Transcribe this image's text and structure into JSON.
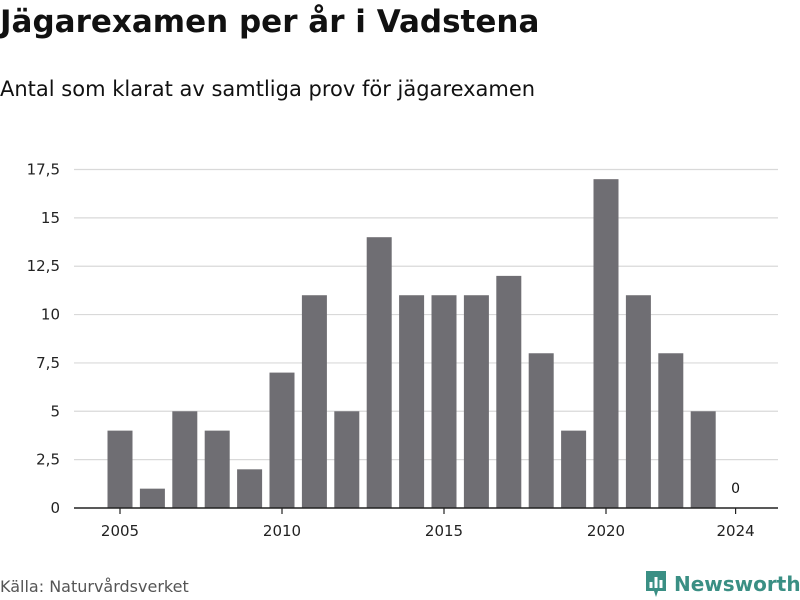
{
  "chart_data": {
    "type": "bar",
    "title": "Jägarexamen per år i Vadstena",
    "subtitle": "Antal som klarat av samtliga prov för jägarexamen",
    "xlabel": "",
    "ylabel": "",
    "x": [
      2005,
      2006,
      2007,
      2008,
      2009,
      2010,
      2011,
      2012,
      2013,
      2014,
      2015,
      2016,
      2017,
      2018,
      2019,
      2020,
      2021,
      2022,
      2023,
      2024
    ],
    "values": [
      4,
      1,
      5,
      4,
      2,
      7,
      11,
      5,
      14,
      11,
      11,
      11,
      12,
      8,
      4,
      17,
      11,
      8,
      5,
      0
    ],
    "ylim": [
      0,
      17.5
    ],
    "yticks": [
      0,
      2.5,
      5,
      7.5,
      10,
      12.5,
      15,
      17.5
    ],
    "ytick_labels": [
      "0",
      "2,5",
      "5",
      "7,5",
      "10",
      "12,5",
      "15",
      "17,5"
    ],
    "xticks": [
      2005,
      2010,
      2015,
      2020,
      2024
    ],
    "xtick_labels": [
      "2005",
      "2010",
      "2015",
      "2020",
      "2024"
    ],
    "data_labels": [
      {
        "x": 2024,
        "text": "0"
      }
    ],
    "grid": true,
    "bar_color": "#6f6e73",
    "grid_color": "#d9d9d9"
  },
  "source": "Källa: Naturvårdsverket",
  "brand": {
    "name": "Newsworthy",
    "icon": "bar-chart-pin-icon",
    "color": "#3a8f84"
  }
}
